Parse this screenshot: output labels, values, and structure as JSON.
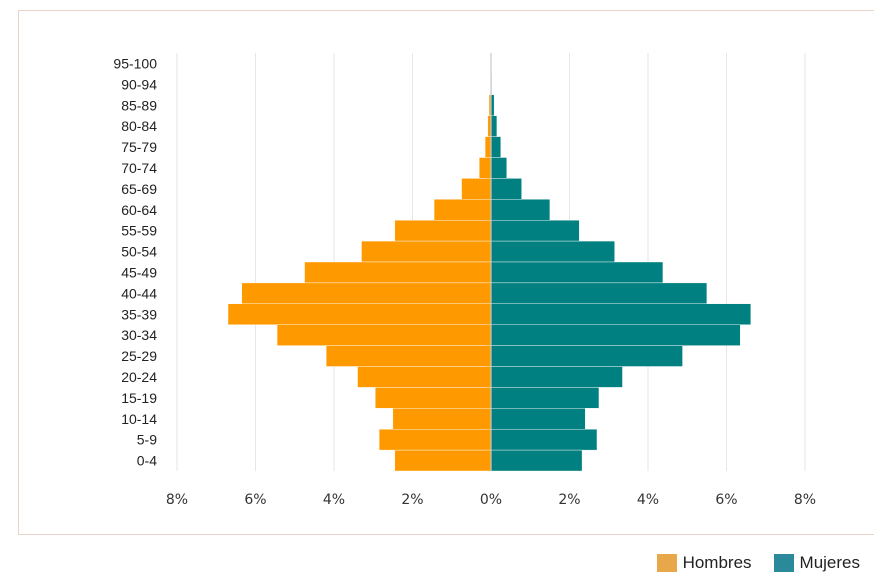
{
  "chart_data": {
    "type": "bar",
    "orientation": "horizontal",
    "chart_subtype": "population-pyramid",
    "categories": [
      "95-100",
      "90-94",
      "85-89",
      "80-84",
      "75-79",
      "70-74",
      "65-69",
      "60-64",
      "55-59",
      "50-54",
      "45-49",
      "40-44",
      "35-39",
      "30-34",
      "25-29",
      "20-24",
      "15-19",
      "10-14",
      "5-9",
      "0-4"
    ],
    "series": [
      {
        "name": "Hombres",
        "color": "#ff9900",
        "values": [
          0.0,
          0.0,
          0.05,
          0.08,
          0.15,
          0.3,
          0.75,
          1.45,
          2.45,
          3.3,
          4.75,
          6.35,
          6.7,
          5.45,
          4.2,
          3.4,
          2.95,
          2.5,
          2.85,
          2.45
        ]
      },
      {
        "name": "Mujeres",
        "color": "#008080",
        "values": [
          0.0,
          0.02,
          0.08,
          0.15,
          0.25,
          0.4,
          0.78,
          1.5,
          2.25,
          3.15,
          4.38,
          5.5,
          6.62,
          6.35,
          4.88,
          3.35,
          2.75,
          2.4,
          2.7,
          2.32
        ]
      }
    ],
    "xlim": [
      -8,
      8
    ],
    "x_tick_values": [
      -8,
      -6,
      -4,
      -2,
      0,
      2,
      4,
      6,
      8
    ],
    "x_tick_labels": [
      "8%",
      "6%",
      "4%",
      "2%",
      "0%",
      "2%",
      "4%",
      "6%",
      "8%"
    ],
    "grid": true,
    "legend_position": "bottom-right"
  },
  "legend": {
    "items": [
      {
        "label": "Hombres",
        "color": "#e8a84a"
      },
      {
        "label": "Mujeres",
        "color": "#2b8a99"
      }
    ]
  }
}
